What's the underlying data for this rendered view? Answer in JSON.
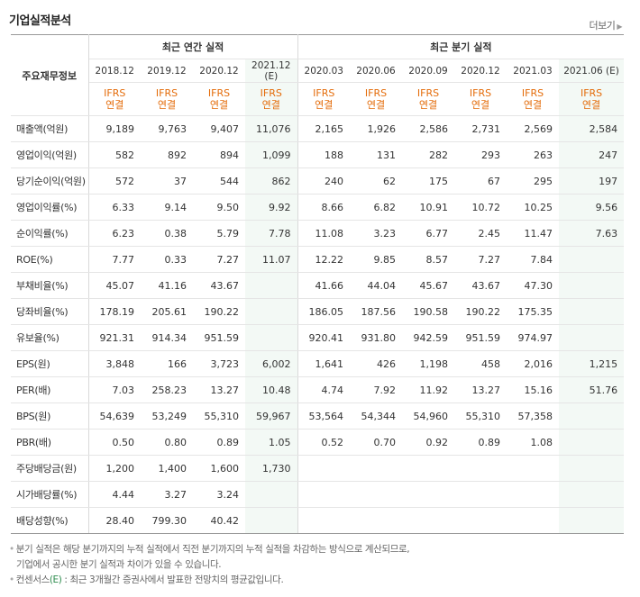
{
  "section_title": "기업실적분석",
  "more_label": "더보기",
  "header": {
    "corner_label": "주요재무정보",
    "annual_label": "최근 연간 실적",
    "quarter_label": "최근 분기 실적",
    "periods": [
      "2018.12",
      "2019.12",
      "2020.12",
      "2021.12 (E)",
      "2020.03",
      "2020.06",
      "2020.09",
      "2020.12",
      "2021.03",
      "2021.06 (E)"
    ],
    "ifrs_line1": "IFRS",
    "ifrs_line2": "연결"
  },
  "rows": [
    {
      "label": "매출액(억원)",
      "values": [
        "9,189",
        "9,763",
        "9,407",
        "11,076",
        "2,165",
        "1,926",
        "2,586",
        "2,731",
        "2,569",
        "2,584"
      ]
    },
    {
      "label": "영업이익(억원)",
      "values": [
        "582",
        "892",
        "894",
        "1,099",
        "188",
        "131",
        "282",
        "293",
        "263",
        "247"
      ]
    },
    {
      "label": "당기순이익(억원)",
      "values": [
        "572",
        "37",
        "544",
        "862",
        "240",
        "62",
        "175",
        "67",
        "295",
        "197"
      ]
    },
    {
      "label": "영업이익률(%)",
      "values": [
        "6.33",
        "9.14",
        "9.50",
        "9.92",
        "8.66",
        "6.82",
        "10.91",
        "10.72",
        "10.25",
        "9.56"
      ]
    },
    {
      "label": "순이익률(%)",
      "values": [
        "6.23",
        "0.38",
        "5.79",
        "7.78",
        "11.08",
        "3.23",
        "6.77",
        "2.45",
        "11.47",
        "7.63"
      ]
    },
    {
      "label": "ROE(%)",
      "values": [
        "7.77",
        "0.33",
        "7.27",
        "11.07",
        "12.22",
        "9.85",
        "8.57",
        "7.27",
        "7.84",
        ""
      ]
    },
    {
      "label": "부채비율(%)",
      "values": [
        "45.07",
        "41.16",
        "43.67",
        "",
        "41.66",
        "44.04",
        "45.67",
        "43.67",
        "47.30",
        ""
      ]
    },
    {
      "label": "당좌비율(%)",
      "values": [
        "178.19",
        "205.61",
        "190.22",
        "",
        "186.05",
        "187.56",
        "190.58",
        "190.22",
        "175.35",
        ""
      ]
    },
    {
      "label": "유보율(%)",
      "values": [
        "921.31",
        "914.34",
        "951.59",
        "",
        "920.41",
        "931.80",
        "942.59",
        "951.59",
        "974.97",
        ""
      ]
    },
    {
      "label": "EPS(원)",
      "values": [
        "3,848",
        "166",
        "3,723",
        "6,002",
        "1,641",
        "426",
        "1,198",
        "458",
        "2,016",
        "1,215"
      ]
    },
    {
      "label": "PER(배)",
      "values": [
        "7.03",
        "258.23",
        "13.27",
        "10.48",
        "4.74",
        "7.92",
        "11.92",
        "13.27",
        "15.16",
        "51.76"
      ]
    },
    {
      "label": "BPS(원)",
      "values": [
        "54,639",
        "53,249",
        "55,310",
        "59,967",
        "53,564",
        "54,344",
        "54,960",
        "55,310",
        "57,358",
        ""
      ]
    },
    {
      "label": "PBR(배)",
      "values": [
        "0.50",
        "0.80",
        "0.89",
        "1.05",
        "0.52",
        "0.70",
        "0.92",
        "0.89",
        "1.08",
        ""
      ]
    },
    {
      "label": "주당배당금(원)",
      "values": [
        "1,200",
        "1,400",
        "1,600",
        "1,730",
        "",
        "",
        "",
        "",
        "",
        ""
      ]
    },
    {
      "label": "시가배당률(%)",
      "values": [
        "4.44",
        "3.27",
        "3.24",
        "",
        "",
        "",
        "",
        "",
        "",
        ""
      ]
    },
    {
      "label": "배당성향(%)",
      "values": [
        "28.40",
        "799.30",
        "40.42",
        "",
        "",
        "",
        "",
        "",
        "",
        ""
      ]
    }
  ],
  "notes": {
    "line1": "분기 실적은 해당 분기까지의 누적 실적에서 직전 분기까지의 누적 실적을 차감하는 방식으로 계산되므로,",
    "line2": "기업에서 공시한 분기 실적과 차이가 있을 수 있습니다.",
    "line3_prefix": "컨센서스",
    "line3_e": "(E)",
    "line3_suffix": " : 최근 3개월간 증권사에서 발표한 전망치의 평균값입니다."
  }
}
